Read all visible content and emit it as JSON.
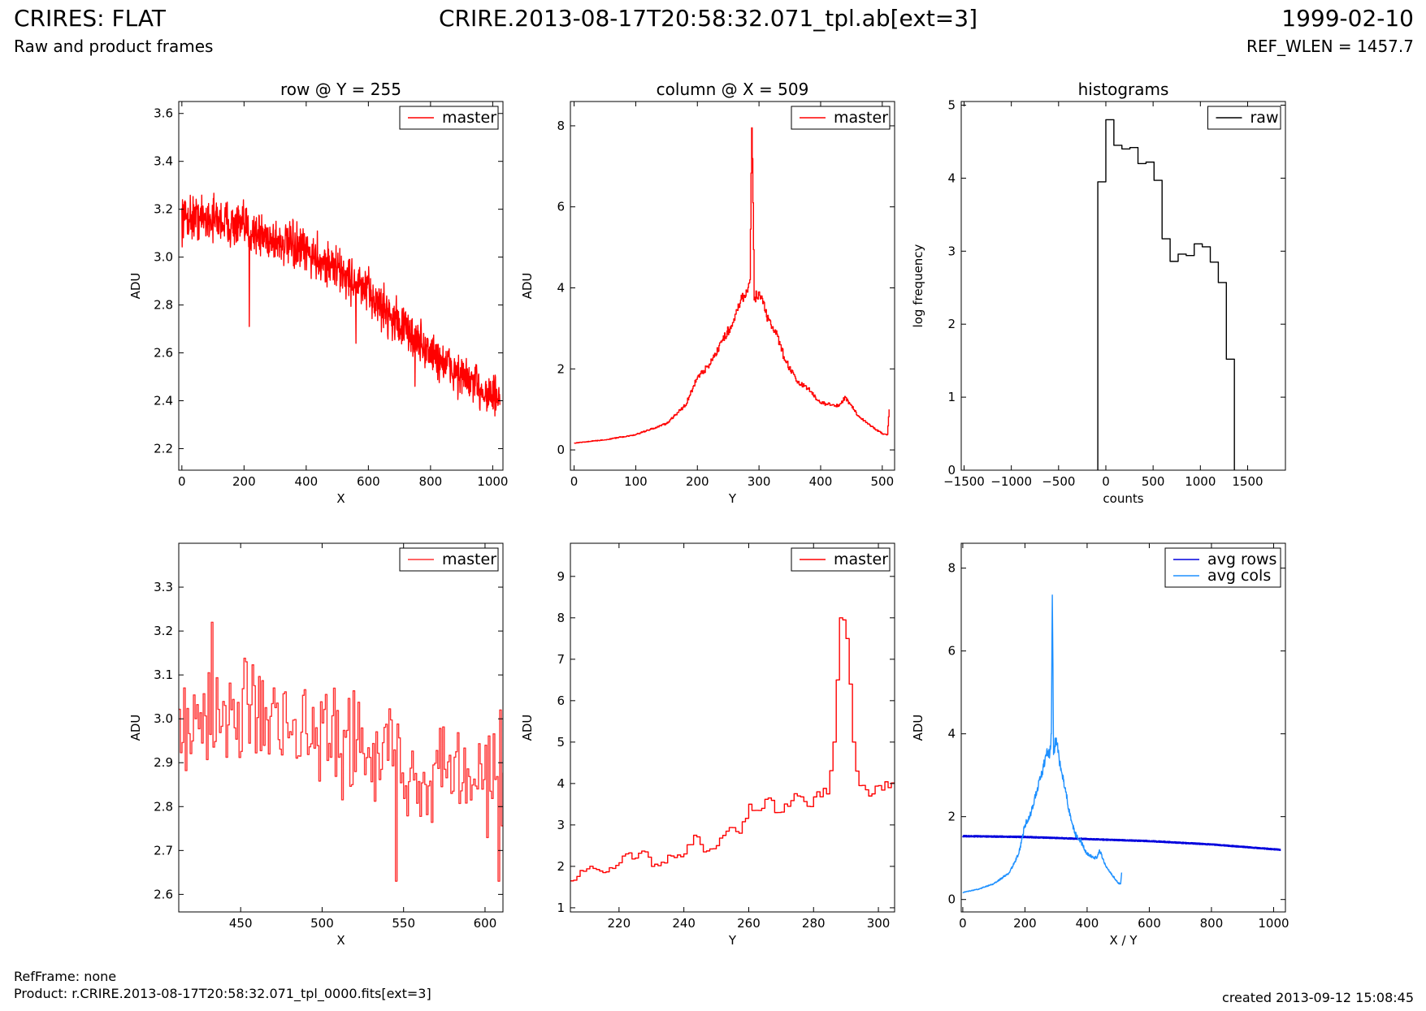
{
  "header": {
    "title": "CRIRES: FLAT",
    "subtitle": "Raw and product frames",
    "filename": "CRIRE.2013-08-17T20:58:32.071_tpl.ab[ext=3]",
    "date": "1999-02-10",
    "ref_wlen": "REF_WLEN = 1457.7"
  },
  "footer": {
    "ref_frame": "RefFrame: none",
    "product": "Product: r.CRIRE.2013-08-17T20:58:32.071_tpl_0000.fits[ext=3]",
    "created": "created 2013-09-12 15:08:45"
  },
  "colors": {
    "master": "#ff0000",
    "raw": "#000000",
    "avg_rows": "#0000dd",
    "avg_cols": "#1e90ff",
    "zoom_line": "#ff3333"
  },
  "chart_data": [
    {
      "id": "row-full",
      "type": "line",
      "title": "row @ Y = 255",
      "xlabel": "X",
      "ylabel": "ADU",
      "xlim": [
        -10,
        1033
      ],
      "ylim": [
        2.11,
        3.65
      ],
      "xticks": [
        0,
        200,
        400,
        600,
        800,
        1000
      ],
      "yticks": [
        2.2,
        2.4,
        2.6,
        2.8,
        3.0,
        3.2,
        3.4,
        3.6
      ],
      "legend": "top-right",
      "series": [
        {
          "name": "master",
          "color": "#ff0000",
          "style": "noisy",
          "trend": [
            [
              0,
              3.17
            ],
            [
              100,
              3.16
            ],
            [
              200,
              3.12
            ],
            [
              300,
              3.07
            ],
            [
              400,
              3.02
            ],
            [
              500,
              2.95
            ],
            [
              600,
              2.85
            ],
            [
              700,
              2.72
            ],
            [
              800,
              2.6
            ],
            [
              900,
              2.5
            ],
            [
              1000,
              2.42
            ],
            [
              1023,
              2.4
            ]
          ],
          "noise": 0.07,
          "spikes": [
            [
              217,
              2.71
            ],
            [
              560,
              2.64
            ],
            [
              750,
              2.46
            ]
          ]
        }
      ]
    },
    {
      "id": "col-full",
      "type": "line",
      "title": "column @ X = 509",
      "xlabel": "Y",
      "ylabel": "ADU",
      "xlim": [
        -6,
        520
      ],
      "ylim": [
        -0.5,
        8.6
      ],
      "xticks": [
        0,
        100,
        200,
        300,
        400,
        500
      ],
      "yticks": [
        0,
        2,
        4,
        6,
        8
      ],
      "legend": "top-right",
      "series": [
        {
          "name": "master",
          "color": "#ff0000",
          "style": "step",
          "points": [
            [
              0,
              0.17
            ],
            [
              50,
              0.25
            ],
            [
              100,
              0.38
            ],
            [
              150,
              0.65
            ],
            [
              180,
              1.1
            ],
            [
              200,
              1.8
            ],
            [
              220,
              2.1
            ],
            [
              240,
              2.7
            ],
            [
              260,
              3.2
            ],
            [
              270,
              3.7
            ],
            [
              280,
              3.9
            ],
            [
              285,
              4.2
            ],
            [
              288,
              7.95
            ],
            [
              290,
              6.1
            ],
            [
              292,
              3.7
            ],
            [
              300,
              3.9
            ],
            [
              310,
              3.4
            ],
            [
              320,
              3.0
            ],
            [
              330,
              2.8
            ],
            [
              340,
              2.3
            ],
            [
              360,
              1.7
            ],
            [
              380,
              1.5
            ],
            [
              400,
              1.15
            ],
            [
              430,
              1.1
            ],
            [
              440,
              1.3
            ],
            [
              460,
              0.85
            ],
            [
              480,
              0.6
            ],
            [
              500,
              0.4
            ],
            [
              508,
              0.38
            ],
            [
              511,
              1.0
            ]
          ]
        }
      ]
    },
    {
      "id": "hist",
      "type": "bar",
      "title": "histograms",
      "xlabel": "counts",
      "ylabel": "log frequency",
      "xlim": [
        -1530,
        1900
      ],
      "ylim": [
        0,
        5.05
      ],
      "xticks": [
        -1500,
        -1000,
        -500,
        0,
        500,
        1000,
        1500
      ],
      "yticks": [
        0,
        1,
        2,
        3,
        4,
        5
      ],
      "legend": "top-right",
      "series": [
        {
          "name": "raw",
          "color": "#000000",
          "style": "histogram",
          "bin_edges": [
            -85,
            0,
            85,
            170,
            255,
            340,
            425,
            510,
            595,
            680,
            765,
            850,
            935,
            1020,
            1105,
            1190,
            1275,
            1360
          ],
          "values": [
            3.95,
            4.8,
            4.45,
            4.4,
            4.42,
            4.2,
            4.22,
            3.97,
            3.17,
            2.86,
            2.96,
            2.94,
            3.1,
            3.06,
            2.85,
            2.57,
            1.52
          ]
        }
      ]
    },
    {
      "id": "row-zoom",
      "type": "line",
      "xlabel": "X",
      "ylabel": "ADU",
      "xlim": [
        412,
        611
      ],
      "ylim": [
        2.56,
        3.4
      ],
      "xticks": [
        450,
        500,
        550,
        600
      ],
      "yticks": [
        2.6,
        2.7,
        2.8,
        2.9,
        3.0,
        3.1,
        3.2,
        3.3
      ],
      "legend": "top-right",
      "series": [
        {
          "name": "master",
          "color": "#ff3333",
          "style": "noisy-step",
          "trend": [
            [
              412,
              3.0
            ],
            [
              450,
              2.99
            ],
            [
              500,
              2.96
            ],
            [
              540,
              2.92
            ],
            [
              580,
              2.85
            ],
            [
              611,
              2.82
            ]
          ],
          "noise": 0.09,
          "spikes": [
            [
              432,
              3.22
            ],
            [
              545,
              2.63
            ],
            [
              608,
              2.63
            ],
            [
              609,
              3.02
            ]
          ]
        }
      ]
    },
    {
      "id": "col-zoom",
      "type": "line",
      "xlabel": "Y",
      "ylabel": "ADU",
      "xlim": [
        205,
        305
      ],
      "ylim": [
        0.9,
        9.8
      ],
      "xticks": [
        220,
        240,
        260,
        280,
        300
      ],
      "yticks": [
        1,
        2,
        3,
        4,
        5,
        6,
        7,
        8,
        9
      ],
      "legend": "top-right",
      "series": [
        {
          "name": "master",
          "color": "#ff0000",
          "style": "step",
          "points": [
            [
              205,
              1.65
            ],
            [
              208,
              1.9
            ],
            [
              212,
              1.95
            ],
            [
              215,
              1.85
            ],
            [
              218,
              1.95
            ],
            [
              222,
              2.3
            ],
            [
              225,
              2.2
            ],
            [
              228,
              2.35
            ],
            [
              230,
              2.0
            ],
            [
              233,
              2.1
            ],
            [
              236,
              2.25
            ],
            [
              240,
              2.3
            ],
            [
              243,
              2.75
            ],
            [
              246,
              2.35
            ],
            [
              250,
              2.5
            ],
            [
              253,
              2.85
            ],
            [
              257,
              2.8
            ],
            [
              260,
              3.5
            ],
            [
              263,
              3.35
            ],
            [
              266,
              3.65
            ],
            [
              269,
              3.3
            ],
            [
              272,
              3.45
            ],
            [
              275,
              3.7
            ],
            [
              278,
              3.45
            ],
            [
              281,
              3.8
            ],
            [
              284,
              3.75
            ],
            [
              286,
              5.0
            ],
            [
              287,
              6.5
            ],
            [
              288,
              8.0
            ],
            [
              289,
              7.95
            ],
            [
              290,
              7.5
            ],
            [
              291,
              6.4
            ],
            [
              292,
              5.0
            ],
            [
              293,
              4.3
            ],
            [
              294,
              3.95
            ],
            [
              296,
              3.85
            ],
            [
              298,
              3.75
            ],
            [
              300,
              3.95
            ],
            [
              303,
              3.9
            ],
            [
              305,
              4.0
            ]
          ]
        }
      ]
    },
    {
      "id": "avg",
      "type": "line",
      "xlabel": "X / Y",
      "ylabel": "ADU",
      "xlim": [
        -5,
        1038
      ],
      "ylim": [
        -0.3,
        8.6
      ],
      "xticks": [
        0,
        200,
        400,
        600,
        800,
        1000
      ],
      "yticks": [
        0,
        2,
        4,
        6,
        8
      ],
      "legend": "top-right",
      "series": [
        {
          "name": "avg rows",
          "color": "#0000dd",
          "style": "thick",
          "points": [
            [
              0,
              1.53
            ],
            [
              200,
              1.51
            ],
            [
              400,
              1.46
            ],
            [
              600,
              1.41
            ],
            [
              800,
              1.33
            ],
            [
              1023,
              1.2
            ]
          ]
        },
        {
          "name": "avg cols",
          "color": "#1e90ff",
          "style": "line",
          "points": [
            [
              0,
              0.17
            ],
            [
              50,
              0.25
            ],
            [
              100,
              0.38
            ],
            [
              150,
              0.65
            ],
            [
              180,
              1.1
            ],
            [
              200,
              1.8
            ],
            [
              220,
              2.1
            ],
            [
              240,
              2.7
            ],
            [
              260,
              3.2
            ],
            [
              270,
              3.6
            ],
            [
              280,
              3.5
            ],
            [
              285,
              4.0
            ],
            [
              288,
              7.35
            ],
            [
              290,
              5.6
            ],
            [
              292,
              3.5
            ],
            [
              300,
              3.9
            ],
            [
              310,
              3.4
            ],
            [
              320,
              3.0
            ],
            [
              330,
              2.7
            ],
            [
              340,
              2.2
            ],
            [
              360,
              1.6
            ],
            [
              380,
              1.4
            ],
            [
              400,
              1.1
            ],
            [
              430,
              1.0
            ],
            [
              440,
              1.2
            ],
            [
              460,
              0.8
            ],
            [
              480,
              0.6
            ],
            [
              500,
              0.4
            ],
            [
              508,
              0.38
            ],
            [
              511,
              0.65
            ]
          ]
        }
      ]
    }
  ]
}
